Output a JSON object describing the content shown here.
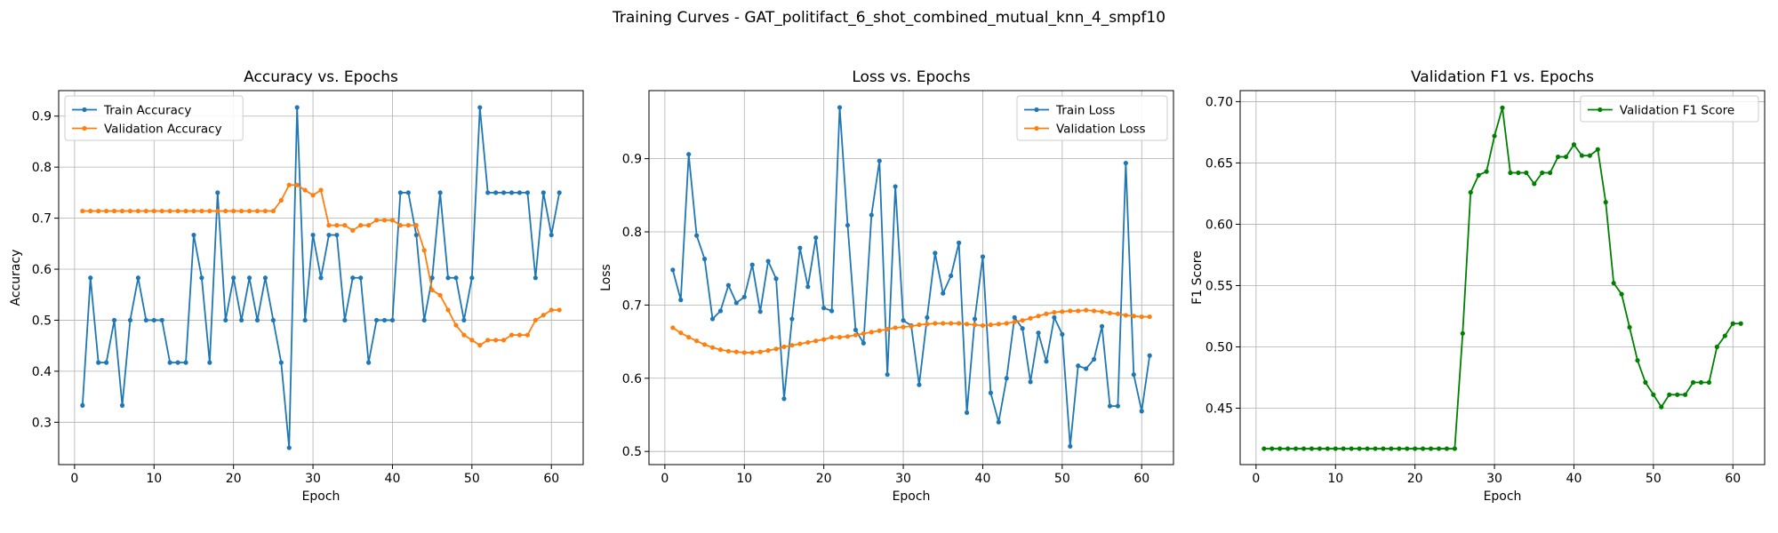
{
  "figure": {
    "suptitle": "Training Curves - GAT_politifact_6_shot_combined_mutual_knn_4_smpf10"
  },
  "chart_data": [
    {
      "type": "line",
      "title": "Accuracy vs. Epochs",
      "xlabel": "Epoch",
      "ylabel": "Accuracy",
      "xlim": [
        -2,
        64
      ],
      "ylim": [
        0.217,
        0.95
      ],
      "xticks": [
        0,
        10,
        20,
        30,
        40,
        50,
        60
      ],
      "yticks": [
        0.3,
        0.4,
        0.5,
        0.6,
        0.7,
        0.8,
        0.9
      ],
      "grid": true,
      "legend_position": "upper-left",
      "series": [
        {
          "name": "Train Accuracy",
          "color": "#1f77b4",
          "values": [
            0.333,
            0.583,
            0.417,
            0.417,
            0.5,
            0.333,
            0.5,
            0.583,
            0.5,
            0.5,
            0.5,
            0.417,
            0.417,
            0.417,
            0.667,
            0.583,
            0.417,
            0.75,
            0.5,
            0.583,
            0.5,
            0.583,
            0.5,
            0.583,
            0.5,
            0.417,
            0.25,
            0.917,
            0.5,
            0.667,
            0.583,
            0.667,
            0.667,
            0.5,
            0.583,
            0.583,
            0.417,
            0.5,
            0.5,
            0.5,
            0.75,
            0.75,
            0.667,
            0.5,
            0.583,
            0.75,
            0.583,
            0.583,
            0.5,
            0.583,
            0.917,
            0.75,
            0.75,
            0.75,
            0.75,
            0.75,
            0.75,
            0.583,
            0.75,
            0.667,
            0.75
          ]
        },
        {
          "name": "Validation Accuracy",
          "color": "#ff7f0e",
          "values": [
            0.714,
            0.714,
            0.714,
            0.714,
            0.714,
            0.714,
            0.714,
            0.714,
            0.714,
            0.714,
            0.714,
            0.714,
            0.714,
            0.714,
            0.714,
            0.714,
            0.714,
            0.714,
            0.714,
            0.714,
            0.714,
            0.714,
            0.714,
            0.714,
            0.714,
            0.735,
            0.765,
            0.765,
            0.755,
            0.745,
            0.755,
            0.686,
            0.686,
            0.686,
            0.676,
            0.686,
            0.686,
            0.696,
            0.696,
            0.696,
            0.686,
            0.686,
            0.686,
            0.637,
            0.559,
            0.549,
            0.52,
            0.49,
            0.471,
            0.461,
            0.451,
            0.461,
            0.461,
            0.461,
            0.471,
            0.471,
            0.471,
            0.5,
            0.51,
            0.52,
            0.52
          ]
        }
      ]
    },
    {
      "type": "line",
      "title": "Loss vs. Epochs",
      "xlabel": "Epoch",
      "ylabel": "Loss",
      "xlim": [
        -2,
        64
      ],
      "ylim": [
        0.482,
        0.993
      ],
      "xticks": [
        0,
        10,
        20,
        30,
        40,
        50,
        60
      ],
      "yticks": [
        0.5,
        0.6,
        0.7,
        0.8,
        0.9
      ],
      "grid": true,
      "legend_position": "upper-right",
      "series": [
        {
          "name": "Train Loss",
          "color": "#1f77b4",
          "values": [
            0.748,
            0.707,
            0.906,
            0.795,
            0.763,
            0.681,
            0.692,
            0.727,
            0.703,
            0.711,
            0.755,
            0.691,
            0.76,
            0.736,
            0.572,
            0.681,
            0.778,
            0.725,
            0.792,
            0.696,
            0.692,
            0.97,
            0.809,
            0.666,
            0.648,
            0.823,
            0.897,
            0.605,
            0.862,
            0.679,
            0.672,
            0.591,
            0.683,
            0.771,
            0.716,
            0.74,
            0.785,
            0.553,
            0.681,
            0.766,
            0.58,
            0.54,
            0.6,
            0.683,
            0.668,
            0.595,
            0.662,
            0.623,
            0.683,
            0.66,
            0.507,
            0.617,
            0.613,
            0.626,
            0.671,
            0.562,
            0.562,
            0.894,
            0.605,
            0.555,
            0.631
          ]
        },
        {
          "name": "Validation Loss",
          "color": "#ff7f0e",
          "values": [
            0.669,
            0.662,
            0.656,
            0.651,
            0.646,
            0.642,
            0.639,
            0.637,
            0.636,
            0.635,
            0.635,
            0.636,
            0.638,
            0.64,
            0.643,
            0.645,
            0.647,
            0.649,
            0.651,
            0.653,
            0.656,
            0.656,
            0.657,
            0.659,
            0.661,
            0.663,
            0.665,
            0.667,
            0.669,
            0.67,
            0.671,
            0.673,
            0.674,
            0.675,
            0.675,
            0.675,
            0.675,
            0.674,
            0.673,
            0.672,
            0.673,
            0.674,
            0.675,
            0.677,
            0.679,
            0.682,
            0.685,
            0.688,
            0.69,
            0.691,
            0.692,
            0.692,
            0.693,
            0.692,
            0.691,
            0.689,
            0.688,
            0.686,
            0.685,
            0.684,
            0.684
          ]
        }
      ]
    },
    {
      "type": "line",
      "title": "Validation F1 vs. Epochs",
      "xlabel": "Epoch",
      "ylabel": "F1 Score",
      "xlim": [
        -2,
        64
      ],
      "ylim": [
        0.404,
        0.709
      ],
      "xticks": [
        0,
        10,
        20,
        30,
        40,
        50,
        60
      ],
      "yticks": [
        0.45,
        0.5,
        0.55,
        0.6,
        0.65,
        0.7
      ],
      "grid": true,
      "legend_position": "upper-right",
      "series": [
        {
          "name": "Validation F1 Score",
          "color": "#008000",
          "values": [
            0.417,
            0.417,
            0.417,
            0.417,
            0.417,
            0.417,
            0.417,
            0.417,
            0.417,
            0.417,
            0.417,
            0.417,
            0.417,
            0.417,
            0.417,
            0.417,
            0.417,
            0.417,
            0.417,
            0.417,
            0.417,
            0.417,
            0.417,
            0.417,
            0.417,
            0.511,
            0.626,
            0.64,
            0.643,
            0.672,
            0.695,
            0.642,
            0.642,
            0.642,
            0.633,
            0.642,
            0.642,
            0.655,
            0.655,
            0.665,
            0.656,
            0.656,
            0.661,
            0.618,
            0.552,
            0.543,
            0.516,
            0.489,
            0.471,
            0.461,
            0.451,
            0.461,
            0.461,
            0.461,
            0.471,
            0.471,
            0.471,
            0.5,
            0.509,
            0.519,
            0.519
          ]
        }
      ]
    }
  ]
}
